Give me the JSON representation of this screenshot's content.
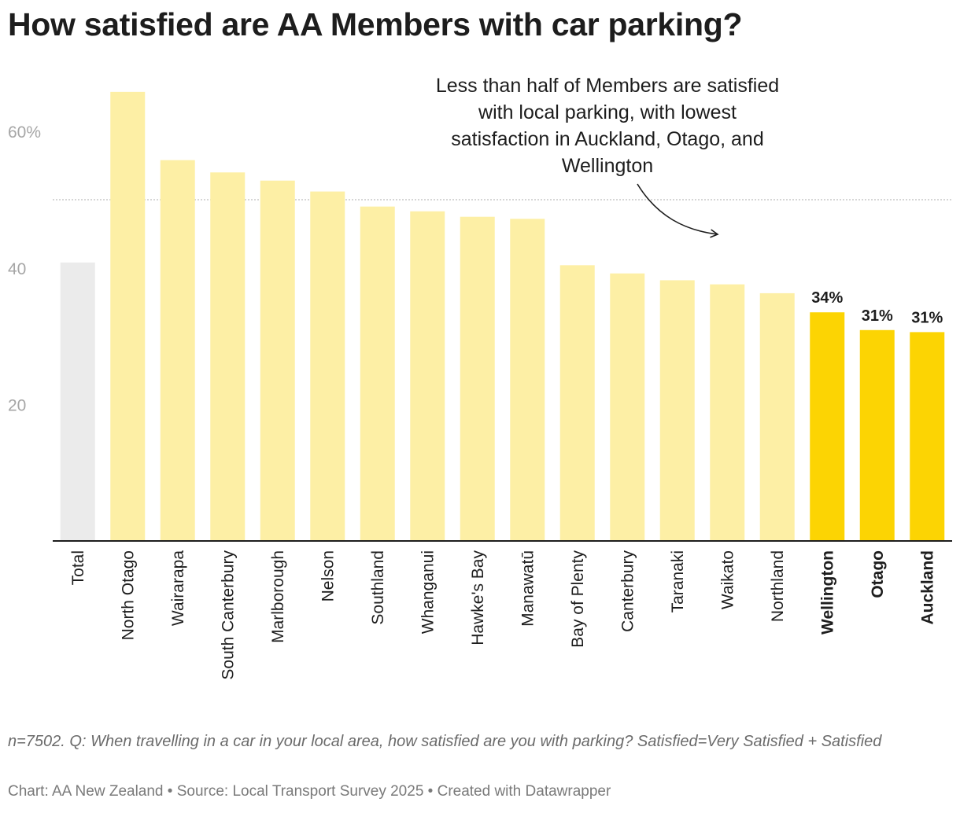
{
  "title": "How satisfied are AA Members with car parking?",
  "notes": "n=7502. Q: When travelling in a car in your local area, how satisfied are you with parking? Satisfied=Very Satisfied + Satisfied",
  "credit": "Chart: AA New Zealand • Source: Local Transport Survey 2025 • Created with Datawrapper",
  "colors": {
    "total": "#ebebeb",
    "region": "#fdefa5",
    "highlight": "#fcd403",
    "reference": "#bdbdbd",
    "axis": "#1d1d1d"
  },
  "chart_data": {
    "type": "bar",
    "title": "How satisfied are AA Members with car parking?",
    "categories": [
      "Total",
      "North Otago",
      "Wairarapa",
      "South Canterbury",
      "Marlborough",
      "Nelson",
      "Southland",
      "Whanganui",
      "Hawke's Bay",
      "Manawatū",
      "Bay of Plenty",
      "Canterbury",
      "Taranaki",
      "Waikato",
      "Northland",
      "Wellington",
      "Otago",
      "Auckland"
    ],
    "values": [
      40.8,
      65.8,
      55.8,
      54.0,
      52.8,
      51.2,
      49.0,
      48.3,
      47.5,
      47.2,
      40.4,
      39.2,
      38.2,
      37.6,
      36.3,
      33.5,
      30.9,
      30.6
    ],
    "categories_kind": [
      "total",
      "region",
      "region",
      "region",
      "region",
      "region",
      "region",
      "region",
      "region",
      "region",
      "region",
      "region",
      "region",
      "region",
      "region",
      "highlight",
      "highlight",
      "highlight"
    ],
    "value_labels": {
      "15": "34%",
      "16": "31%",
      "17": "31%"
    },
    "yticks": [
      20,
      40,
      60
    ],
    "ytick_labels": [
      "20",
      "40",
      "60%"
    ],
    "reference_line": 50,
    "ylim": [
      0,
      70
    ],
    "xlabel": "",
    "ylabel": "",
    "annotation": {
      "lines": [
        "Less than half of Members are satisfied",
        "with local parking, with lowest",
        "satisfaction in Auckland, Otago, and",
        "Wellington"
      ]
    }
  }
}
